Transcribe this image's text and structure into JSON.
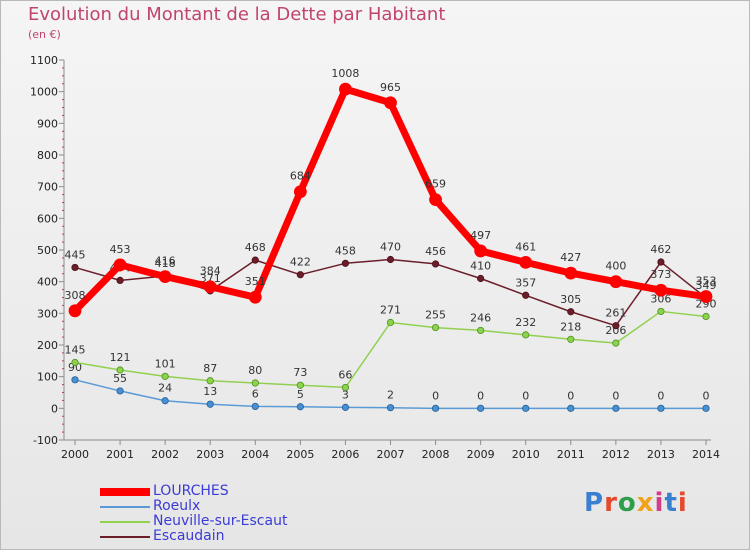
{
  "title": "Evolution du Montant de la Dette par Habitant",
  "subtitle": "(en €)",
  "logo_text": "Proxiti",
  "chart_data": {
    "type": "line",
    "title": "Evolution du Montant de la Dette par Habitant",
    "subtitle": "(en €)",
    "x": [
      "2000",
      "2001",
      "2002",
      "2003",
      "2004",
      "2005",
      "2006",
      "2007",
      "2008",
      "2009",
      "2010",
      "2011",
      "2012",
      "2013",
      "2014"
    ],
    "ylim": [
      -100,
      1100
    ],
    "yticks": [
      -100,
      0,
      100,
      200,
      300,
      400,
      500,
      600,
      700,
      800,
      900,
      1000,
      1100
    ],
    "grid": false,
    "legend_position": "bottom-left",
    "series": [
      {
        "name": "LOURCHES",
        "color": "#ff0000",
        "values": [
          308,
          453,
          416,
          384,
          351,
          684,
          1008,
          965,
          659,
          497,
          461,
          427,
          400,
          373,
          353
        ]
      },
      {
        "name": "Roeulx",
        "color": "#5b9bd5",
        "values": [
          90,
          55,
          24,
          13,
          6,
          5,
          3,
          2,
          0,
          0,
          0,
          0,
          0,
          0,
          0
        ]
      },
      {
        "name": "Neuville-sur-Escaut",
        "color": "#92d050",
        "values": [
          145,
          121,
          101,
          87,
          80,
          73,
          66,
          271,
          255,
          246,
          232,
          218,
          206,
          306,
          290
        ]
      },
      {
        "name": "Escaudain",
        "color": "#6b1e2a",
        "values": [
          445,
          404,
          418,
          371,
          468,
          422,
          458,
          470,
          456,
          410,
          357,
          305,
          261,
          462,
          349
        ]
      }
    ]
  }
}
